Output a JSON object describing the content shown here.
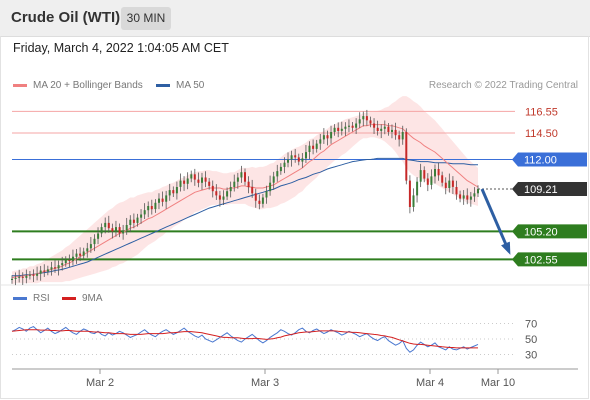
{
  "header": {
    "title": "Crude Oil (WTI)",
    "timeframe": "30 MIN"
  },
  "timestamp": "Friday, March 4, 2022 1:04:05 AM CET",
  "legend": {
    "ma20": "MA 20 + Bollinger Bands",
    "ma50": "MA 50"
  },
  "credit": "Research © 2022 Trading Central",
  "rsi_legend": {
    "rsi": "RSI",
    "ma9": "9MA"
  },
  "colors": {
    "up": "#3a7d3a",
    "down": "#c62828",
    "ma20": "#f08080",
    "ma50": "#2e5fa3",
    "band": "#fde0e0",
    "support": "#2e7d1f",
    "resist_line": "#f4a5a5",
    "pivot": "#3a6fd8",
    "current": "#333333",
    "rsi": "#4a78d0",
    "rsi_ma": "#d42020",
    "arrow": "#2e5fa3"
  },
  "chart_data": [
    {
      "type": "candlestick",
      "title": "Crude Oil (WTI)",
      "interval": "30 MIN",
      "x_ticks": [
        "Mar 2",
        "Mar 3",
        "Mar 4",
        "Mar 10"
      ],
      "y_range": [
        100.6,
        118.1
      ],
      "levels": [
        {
          "label": "116.55",
          "value": 116.55,
          "kind": "resistance"
        },
        {
          "label": "114.50",
          "value": 114.5,
          "kind": "resistance"
        },
        {
          "label": "112.00",
          "value": 112.0,
          "kind": "pivot"
        },
        {
          "label": "109.21",
          "value": 109.21,
          "kind": "last"
        },
        {
          "label": "105.20",
          "value": 105.2,
          "kind": "support"
        },
        {
          "label": "102.55",
          "value": 102.55,
          "kind": "support"
        }
      ],
      "closes": [
        100.7,
        100.8,
        100.9,
        100.8,
        101.0,
        101.1,
        101.0,
        101.2,
        101.5,
        101.4,
        101.6,
        101.8,
        101.7,
        102.0,
        102.2,
        102.5,
        102.4,
        102.8,
        103.1,
        102.9,
        103.3,
        103.6,
        104.0,
        104.5,
        105.0,
        105.6,
        106.0,
        105.5,
        105.2,
        105.6,
        105.0,
        105.3,
        105.8,
        106.3,
        106.0,
        106.5,
        106.8,
        107.2,
        107.6,
        107.3,
        107.9,
        108.3,
        108.0,
        108.6,
        109.1,
        108.8,
        109.4,
        110.0,
        109.7,
        110.2,
        110.6,
        110.1,
        109.8,
        110.3,
        109.9,
        109.5,
        109.0,
        108.6,
        108.2,
        108.5,
        109.0,
        109.4,
        109.9,
        110.3,
        110.8,
        109.9,
        109.4,
        108.8,
        108.1,
        107.8,
        108.4,
        109.0,
        109.8,
        110.4,
        110.9,
        111.3,
        111.7,
        112.0,
        112.4,
        112.2,
        111.8,
        112.1,
        112.7,
        113.3,
        113.0,
        113.5,
        113.9,
        114.3,
        114.0,
        114.6,
        115.0,
        114.7,
        114.9,
        115.1,
        115.2,
        115.0,
        115.4,
        115.8,
        116.1,
        115.7,
        115.4,
        115.0,
        114.7,
        114.9,
        115.1,
        114.6,
        114.8,
        114.3,
        113.9,
        114.6,
        110.0,
        107.5,
        108.6,
        109.9,
        111.0,
        110.2,
        109.6,
        110.4,
        111.1,
        110.5,
        109.8,
        109.3,
        110.0,
        109.4,
        108.7,
        108.3,
        108.6,
        108.2,
        108.5,
        108.8,
        109.21
      ],
      "ma20": [
        100.8,
        100.9,
        100.9,
        101.0,
        101.0,
        101.1,
        101.1,
        101.2,
        101.3,
        101.4,
        101.5,
        101.6,
        101.7,
        101.8,
        101.9,
        102.1,
        102.2,
        102.4,
        102.6,
        102.8,
        103.0,
        103.2,
        103.4,
        103.6,
        103.8,
        104.0,
        104.2,
        104.4,
        104.6,
        104.8,
        105.0,
        105.1,
        105.3,
        105.5,
        105.6,
        105.8,
        106.0,
        106.2,
        106.4,
        106.5,
        106.7,
        106.9,
        107.1,
        107.3,
        107.5,
        107.7,
        107.9,
        108.1,
        108.3,
        108.5,
        108.7,
        108.9,
        109.0,
        109.1,
        109.2,
        109.3,
        109.3,
        109.3,
        109.3,
        109.2,
        109.2,
        109.3,
        109.3,
        109.4,
        109.5,
        109.5,
        109.4,
        109.4,
        109.3,
        109.3,
        109.3,
        109.4,
        109.5,
        109.6,
        109.8,
        110.0,
        110.2,
        110.4,
        110.6,
        110.8,
        111.0,
        111.2,
        111.5,
        111.8,
        112.0,
        112.3,
        112.6,
        112.8,
        113.1,
        113.4,
        113.6,
        113.8,
        114.0,
        114.2,
        114.4,
        114.6,
        114.8,
        115.0,
        115.2,
        115.2,
        115.3,
        115.3,
        115.3,
        115.3,
        115.3,
        115.2,
        115.2,
        115.1,
        115.0,
        114.9,
        114.6,
        114.3,
        114.0,
        113.8,
        113.6,
        113.3,
        113.1,
        112.9,
        112.7,
        112.4,
        112.1,
        111.8,
        111.5,
        111.2,
        110.9,
        110.6,
        110.3,
        110.0,
        109.8,
        109.6,
        109.4
      ],
      "bb_width": [
        0.6,
        0.6,
        0.6,
        0.7,
        0.7,
        0.8,
        0.8,
        0.9,
        0.9,
        1.0,
        1.1,
        1.2,
        1.3,
        1.4,
        1.5,
        1.6,
        1.7,
        1.8,
        1.9,
        2.0,
        2.1,
        2.2,
        2.3,
        2.4,
        2.5,
        2.6,
        2.7,
        2.8,
        2.8,
        2.9,
        2.9,
        2.9,
        2.9,
        2.9,
        2.8,
        2.8,
        2.7,
        2.6,
        2.5,
        2.4,
        2.4,
        2.3,
        2.3,
        2.2,
        2.2,
        2.1,
        2.1,
        2.1,
        2.0,
        2.0,
        2.0,
        1.9,
        1.9,
        1.8,
        1.8,
        1.7,
        1.6,
        1.6,
        1.5,
        1.5,
        1.5,
        1.5,
        1.5,
        1.6,
        1.7,
        1.7,
        1.8,
        1.9,
        1.9,
        2.0,
        2.0,
        2.0,
        2.1,
        2.1,
        2.2,
        2.2,
        2.3,
        2.3,
        2.3,
        2.3,
        2.2,
        2.2,
        2.1,
        2.1,
        2.0,
        2.0,
        1.9,
        1.9,
        1.8,
        1.8,
        1.7,
        1.7,
        1.6,
        1.6,
        1.5,
        1.4,
        1.3,
        1.2,
        1.2,
        1.2,
        1.2,
        1.2,
        1.3,
        1.4,
        1.6,
        1.8,
        2.1,
        2.4,
        2.8,
        3.1,
        3.4,
        3.5,
        3.5,
        3.5,
        3.4,
        3.3,
        3.2,
        3.1,
        3.0,
        2.9,
        2.8,
        2.7,
        2.6,
        2.5,
        2.4,
        2.3,
        2.2,
        2.1,
        2.0,
        1.9,
        1.8
      ],
      "ma50": [
        101.0,
        101.0,
        101.0,
        101.05,
        101.1,
        101.1,
        101.15,
        101.2,
        101.25,
        101.3,
        101.35,
        101.4,
        101.5,
        101.55,
        101.6,
        101.7,
        101.8,
        101.9,
        102.0,
        102.1,
        102.2,
        102.3,
        102.45,
        102.6,
        102.75,
        102.9,
        103.05,
        103.2,
        103.35,
        103.5,
        103.65,
        103.8,
        103.95,
        104.1,
        104.25,
        104.4,
        104.55,
        104.7,
        104.85,
        105.0,
        105.15,
        105.3,
        105.45,
        105.6,
        105.75,
        105.9,
        106.05,
        106.2,
        106.35,
        106.5,
        106.65,
        106.8,
        106.95,
        107.1,
        107.25,
        107.4,
        107.5,
        107.6,
        107.7,
        107.8,
        107.9,
        108.0,
        108.1,
        108.2,
        108.3,
        108.4,
        108.5,
        108.6,
        108.7,
        108.8,
        108.9,
        109.0,
        109.1,
        109.2,
        109.35,
        109.5,
        109.6,
        109.7,
        109.8,
        109.95,
        110.1,
        110.2,
        110.3,
        110.45,
        110.6,
        110.7,
        110.8,
        110.95,
        111.1,
        111.2,
        111.3,
        111.4,
        111.5,
        111.6,
        111.7,
        111.8,
        111.85,
        111.9,
        111.95,
        112.0,
        112.0,
        112.05,
        112.1,
        112.1,
        112.1,
        112.1,
        112.1,
        112.1,
        112.1,
        112.1,
        112.0,
        111.95,
        111.9,
        111.85,
        111.8,
        111.8,
        111.8,
        111.75,
        111.7,
        111.7,
        111.7,
        111.7,
        111.65,
        111.6,
        111.6,
        111.6,
        111.6,
        111.55,
        111.5,
        111.5,
        111.5
      ],
      "projection_arrow": {
        "from": 109.21,
        "to": 103.5
      }
    },
    {
      "type": "line",
      "title": "RSI",
      "series": [
        {
          "name": "RSI",
          "values": [
            60,
            62,
            65,
            63,
            60,
            64,
            66,
            62,
            58,
            61,
            64,
            60,
            57,
            59,
            62,
            65,
            61,
            58,
            56,
            60,
            63,
            61,
            58,
            57,
            60,
            56,
            54,
            58,
            55,
            57,
            60,
            58,
            55,
            52,
            54,
            56,
            59,
            62,
            58,
            55,
            53,
            57,
            60,
            62,
            59,
            56,
            58,
            61,
            64,
            60,
            57,
            54,
            52,
            55,
            50,
            48,
            46,
            49,
            52,
            55,
            58,
            54,
            51,
            48,
            46,
            50,
            53,
            56,
            52,
            48,
            45,
            48,
            52,
            55,
            58,
            62,
            60,
            57,
            55,
            58,
            62,
            64,
            60,
            58,
            61,
            63,
            60,
            57,
            59,
            62,
            60,
            58,
            55,
            57,
            60,
            58,
            56,
            53,
            55,
            57,
            53,
            50,
            48,
            51,
            53,
            48,
            45,
            42,
            44,
            48,
            38,
            33,
            36,
            42,
            46,
            43,
            40,
            42,
            45,
            40,
            38,
            36,
            40,
            37,
            36,
            38,
            40,
            37,
            39,
            41,
            43
          ]
        },
        {
          "name": "9MA",
          "values": [
            60,
            60.5,
            61,
            61.5,
            62,
            62,
            62,
            62,
            61.5,
            61.5,
            61.5,
            61,
            61,
            60.5,
            60.5,
            61,
            61,
            60.5,
            60,
            60,
            60,
            60,
            59.5,
            59,
            59,
            58.5,
            58,
            58,
            57.5,
            57,
            57,
            57,
            56.5,
            56,
            56,
            56,
            56,
            56.5,
            57,
            57,
            57,
            57,
            57,
            57.5,
            58,
            58,
            58.5,
            59,
            59.5,
            59.5,
            59.5,
            59,
            58.5,
            58,
            57,
            56,
            55,
            54,
            53,
            52,
            52,
            51.5,
            51.5,
            51.5,
            51,
            50.5,
            50.5,
            50.5,
            51,
            50.5,
            50,
            49.5,
            50,
            50.5,
            51.5,
            52.5,
            54,
            55,
            56,
            57,
            58,
            58.5,
            59,
            59,
            59.5,
            60,
            60.5,
            60.5,
            60.5,
            60.5,
            60.5,
            60,
            59.5,
            59,
            59,
            58.5,
            58.5,
            58,
            57.5,
            57,
            56.5,
            56,
            55.5,
            54.5,
            54,
            53,
            52,
            50.5,
            49,
            47.5,
            46,
            44.5,
            43.5,
            43,
            43,
            42.5,
            42,
            41.5,
            41,
            40.5,
            40,
            39.5,
            39,
            39,
            38.5,
            38.5,
            38.5,
            38.5,
            38.5,
            38.5,
            38.5
          ]
        }
      ],
      "y_ticks": [
        70,
        50,
        30
      ],
      "y_range": [
        10,
        90
      ]
    }
  ]
}
